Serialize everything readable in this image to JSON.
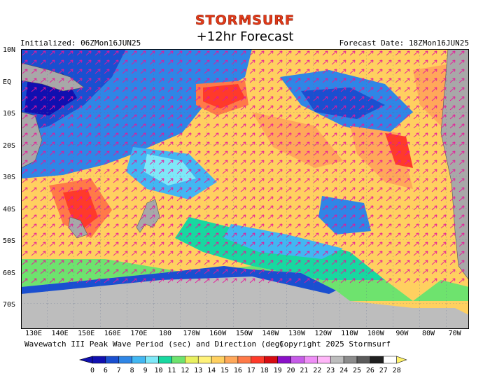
{
  "brand": "STORMSURF",
  "title": "+12hr Forecast",
  "initialized": "Initialized: 06ZMon16JUN25",
  "forecast_date": "Forecast Date: 18ZMon16JUN25",
  "lat_labels": [
    "10N",
    "EQ",
    "10S",
    "20S",
    "30S",
    "40S",
    "50S",
    "60S",
    "70S"
  ],
  "lon_labels": [
    "130E",
    "140E",
    "150E",
    "160E",
    "170E",
    "180",
    "170W",
    "160W",
    "150W",
    "140W",
    "130W",
    "120W",
    "110W",
    "100W",
    "90W",
    "80W",
    "70W"
  ],
  "caption": "Wavewatch III Peak Wave Period (sec) and Direction (deg)",
  "copyright": "Copyright 2025 Stormsurf",
  "scale": {
    "labels": [
      "0",
      "6",
      "7",
      "8",
      "9",
      "10",
      "11",
      "12",
      "13",
      "14",
      "15",
      "16",
      "17",
      "18",
      "19",
      "20",
      "21",
      "22",
      "23",
      "24",
      "25",
      "26",
      "27",
      "28"
    ],
    "colors": [
      "#1010b0",
      "#1a4fd0",
      "#2f86e6",
      "#42b7f2",
      "#7ee8f8",
      "#18d8a0",
      "#6ee36e",
      "#e8f060",
      "#fff27a",
      "#ffd060",
      "#ffa85a",
      "#ff7a48",
      "#ff3a2a",
      "#d80c12",
      "#8a10c8",
      "#c65ce8",
      "#ee8ef6",
      "#ffb6f8",
      "#bdbdbd",
      "#8c8c8c",
      "#5a5a5a",
      "#202020",
      "#ffffff",
      "#fff36a"
    ]
  }
}
